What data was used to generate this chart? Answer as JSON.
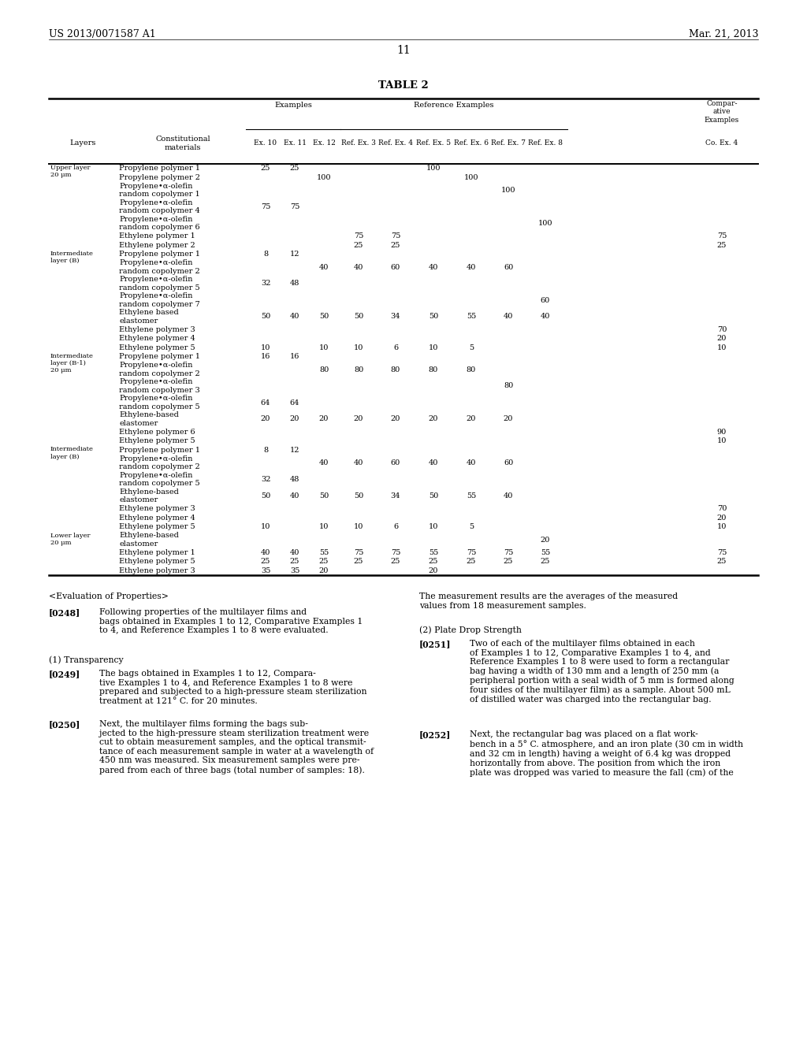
{
  "header_left": "US 2013/0071587 A1",
  "header_right": "Mar. 21, 2013",
  "page_number": "11",
  "table_title": "TABLE 2",
  "bg_color": "#ffffff",
  "rows": [
    {
      "layer": "Upper layer\n20 μm",
      "material": "Propylene polymer 1",
      "ex10": "25",
      "ex11": "25",
      "ex12": "",
      "ref3": "",
      "ref4": "",
      "ref5": "100",
      "ref6": "",
      "ref7": "",
      "ref8": "",
      "co4": ""
    },
    {
      "layer": "",
      "material": "Propylene polymer 2",
      "ex10": "",
      "ex11": "",
      "ex12": "100",
      "ref3": "",
      "ref4": "",
      "ref5": "",
      "ref6": "100",
      "ref7": "",
      "ref8": "",
      "co4": ""
    },
    {
      "layer": "",
      "material": "Propylene•α-olefin\nrandom copolymer 1",
      "ex10": "",
      "ex11": "",
      "ex12": "",
      "ref3": "",
      "ref4": "",
      "ref5": "",
      "ref6": "",
      "ref7": "100",
      "ref8": "",
      "co4": ""
    },
    {
      "layer": "",
      "material": "Propylene•α-olefin\nrandom copolymer 4",
      "ex10": "75",
      "ex11": "75",
      "ex12": "",
      "ref3": "",
      "ref4": "",
      "ref5": "",
      "ref6": "",
      "ref7": "",
      "ref8": "",
      "co4": ""
    },
    {
      "layer": "",
      "material": "Propylene•α-olefin\nrandom copolymer 6",
      "ex10": "",
      "ex11": "",
      "ex12": "",
      "ref3": "",
      "ref4": "",
      "ref5": "",
      "ref6": "",
      "ref7": "",
      "ref8": "100",
      "co4": ""
    },
    {
      "layer": "",
      "material": "Ethylene polymer 1",
      "ex10": "",
      "ex11": "",
      "ex12": "",
      "ref3": "75",
      "ref4": "75",
      "ref5": "",
      "ref6": "",
      "ref7": "",
      "ref8": "",
      "co4": "75"
    },
    {
      "layer": "",
      "material": "Ethylene polymer 2",
      "ex10": "",
      "ex11": "",
      "ex12": "",
      "ref3": "25",
      "ref4": "25",
      "ref5": "",
      "ref6": "",
      "ref7": "",
      "ref8": "",
      "co4": "25"
    },
    {
      "layer": "Intermediate\nlayer (B)",
      "material": "Propylene polymer 1",
      "ex10": "8",
      "ex11": "12",
      "ex12": "",
      "ref3": "",
      "ref4": "",
      "ref5": "",
      "ref6": "",
      "ref7": "",
      "ref8": "",
      "co4": ""
    },
    {
      "layer": "",
      "material": "Propylene•α-olefin\nrandom copolymer 2",
      "ex10": "",
      "ex11": "",
      "ex12": "40",
      "ref3": "40",
      "ref4": "60",
      "ref5": "40",
      "ref6": "40",
      "ref7": "60",
      "ref8": "",
      "co4": ""
    },
    {
      "layer": "",
      "material": "Propylene•α-olefin\nrandom copolymer 5",
      "ex10": "32",
      "ex11": "48",
      "ex12": "",
      "ref3": "",
      "ref4": "",
      "ref5": "",
      "ref6": "",
      "ref7": "",
      "ref8": "",
      "co4": ""
    },
    {
      "layer": "",
      "material": "Propylene•α-olefin\nrandom copolymer 7",
      "ex10": "",
      "ex11": "",
      "ex12": "",
      "ref3": "",
      "ref4": "",
      "ref5": "",
      "ref6": "",
      "ref7": "",
      "ref8": "60",
      "co4": ""
    },
    {
      "layer": "",
      "material": "Ethylene based\nelastomer",
      "ex10": "50",
      "ex11": "40",
      "ex12": "50",
      "ref3": "50",
      "ref4": "34",
      "ref5": "50",
      "ref6": "55",
      "ref7": "40",
      "ref8": "40",
      "co4": ""
    },
    {
      "layer": "",
      "material": "Ethylene polymer 3",
      "ex10": "",
      "ex11": "",
      "ex12": "",
      "ref3": "",
      "ref4": "",
      "ref5": "",
      "ref6": "",
      "ref7": "",
      "ref8": "",
      "co4": "70"
    },
    {
      "layer": "",
      "material": "Ethylene polymer 4",
      "ex10": "",
      "ex11": "",
      "ex12": "",
      "ref3": "",
      "ref4": "",
      "ref5": "",
      "ref6": "",
      "ref7": "",
      "ref8": "",
      "co4": "20"
    },
    {
      "layer": "",
      "material": "Ethylene polymer 5",
      "ex10": "10",
      "ex11": "",
      "ex12": "10",
      "ref3": "10",
      "ref4": "6",
      "ref5": "10",
      "ref6": "5",
      "ref7": "",
      "ref8": "",
      "co4": "10"
    },
    {
      "layer": "Intermediate\nlayer (B-1)\n20 μm",
      "material": "Propylene polymer 1",
      "ex10": "16",
      "ex11": "16",
      "ex12": "",
      "ref3": "",
      "ref4": "",
      "ref5": "",
      "ref6": "",
      "ref7": "",
      "ref8": "",
      "co4": ""
    },
    {
      "layer": "",
      "material": "Propylene•α-olefin\nrandom copolymer 2",
      "ex10": "",
      "ex11": "",
      "ex12": "80",
      "ref3": "80",
      "ref4": "80",
      "ref5": "80",
      "ref6": "80",
      "ref7": "",
      "ref8": "",
      "co4": ""
    },
    {
      "layer": "",
      "material": "Propylene•α-olefin\nrandom copolymer 3",
      "ex10": "",
      "ex11": "",
      "ex12": "",
      "ref3": "",
      "ref4": "",
      "ref5": "",
      "ref6": "",
      "ref7": "80",
      "ref8": "",
      "co4": ""
    },
    {
      "layer": "",
      "material": "Propylene•α-olefin\nrandom copolymer 5",
      "ex10": "64",
      "ex11": "64",
      "ex12": "",
      "ref3": "",
      "ref4": "",
      "ref5": "",
      "ref6": "",
      "ref7": "",
      "ref8": "",
      "co4": ""
    },
    {
      "layer": "",
      "material": "Ethylene-based\nelastomer",
      "ex10": "20",
      "ex11": "20",
      "ex12": "20",
      "ref3": "20",
      "ref4": "20",
      "ref5": "20",
      "ref6": "20",
      "ref7": "20",
      "ref8": "",
      "co4": ""
    },
    {
      "layer": "",
      "material": "Ethylene polymer 6",
      "ex10": "",
      "ex11": "",
      "ex12": "",
      "ref3": "",
      "ref4": "",
      "ref5": "",
      "ref6": "",
      "ref7": "",
      "ref8": "",
      "co4": "90"
    },
    {
      "layer": "",
      "material": "Ethylene polymer 5",
      "ex10": "",
      "ex11": "",
      "ex12": "",
      "ref3": "",
      "ref4": "",
      "ref5": "",
      "ref6": "",
      "ref7": "",
      "ref8": "",
      "co4": "10"
    },
    {
      "layer": "Intermediate\nlayer (B)",
      "material": "Propylene polymer 1",
      "ex10": "8",
      "ex11": "12",
      "ex12": "",
      "ref3": "",
      "ref4": "",
      "ref5": "",
      "ref6": "",
      "ref7": "",
      "ref8": "",
      "co4": ""
    },
    {
      "layer": "",
      "material": "Propylene•α-olefin\nrandom copolymer 2",
      "ex10": "",
      "ex11": "",
      "ex12": "40",
      "ref3": "40",
      "ref4": "60",
      "ref5": "40",
      "ref6": "40",
      "ref7": "60",
      "ref8": "",
      "co4": ""
    },
    {
      "layer": "",
      "material": "Propylene•α-olefin\nrandom copolymer 5",
      "ex10": "32",
      "ex11": "48",
      "ex12": "",
      "ref3": "",
      "ref4": "",
      "ref5": "",
      "ref6": "",
      "ref7": "",
      "ref8": "",
      "co4": ""
    },
    {
      "layer": "",
      "material": "Ethylene-based\nelastomer",
      "ex10": "50",
      "ex11": "40",
      "ex12": "50",
      "ref3": "50",
      "ref4": "34",
      "ref5": "50",
      "ref6": "55",
      "ref7": "40",
      "ref8": "",
      "co4": ""
    },
    {
      "layer": "",
      "material": "Ethylene polymer 3",
      "ex10": "",
      "ex11": "",
      "ex12": "",
      "ref3": "",
      "ref4": "",
      "ref5": "",
      "ref6": "",
      "ref7": "",
      "ref8": "",
      "co4": "70"
    },
    {
      "layer": "",
      "material": "Ethylene polymer 4",
      "ex10": "",
      "ex11": "",
      "ex12": "",
      "ref3": "",
      "ref4": "",
      "ref5": "",
      "ref6": "",
      "ref7": "",
      "ref8": "",
      "co4": "20"
    },
    {
      "layer": "",
      "material": "Ethylene polymer 5",
      "ex10": "10",
      "ex11": "",
      "ex12": "10",
      "ref3": "10",
      "ref4": "6",
      "ref5": "10",
      "ref6": "5",
      "ref7": "",
      "ref8": "",
      "co4": "10"
    },
    {
      "layer": "Lower layer\n20 μm",
      "material": "Ethylene-based\nelastomer",
      "ex10": "",
      "ex11": "",
      "ex12": "",
      "ref3": "",
      "ref4": "",
      "ref5": "",
      "ref6": "",
      "ref7": "",
      "ref8": "20",
      "co4": ""
    },
    {
      "layer": "",
      "material": "Ethylene polymer 1",
      "ex10": "40",
      "ex11": "40",
      "ex12": "55",
      "ref3": "75",
      "ref4": "75",
      "ref5": "55",
      "ref6": "75",
      "ref7": "75",
      "ref8": "55",
      "co4": "75"
    },
    {
      "layer": "",
      "material": "Ethylene polymer 5",
      "ex10": "25",
      "ex11": "25",
      "ex12": "25",
      "ref3": "25",
      "ref4": "25",
      "ref5": "25",
      "ref6": "25",
      "ref7": "25",
      "ref8": "25",
      "co4": "25"
    },
    {
      "layer": "",
      "material": "Ethylene polymer 3",
      "ex10": "35",
      "ex11": "35",
      "ex12": "20",
      "ref3": "",
      "ref4": "",
      "ref5": "20",
      "ref6": "",
      "ref7": "",
      "ref8": "",
      "co4": ""
    }
  ]
}
